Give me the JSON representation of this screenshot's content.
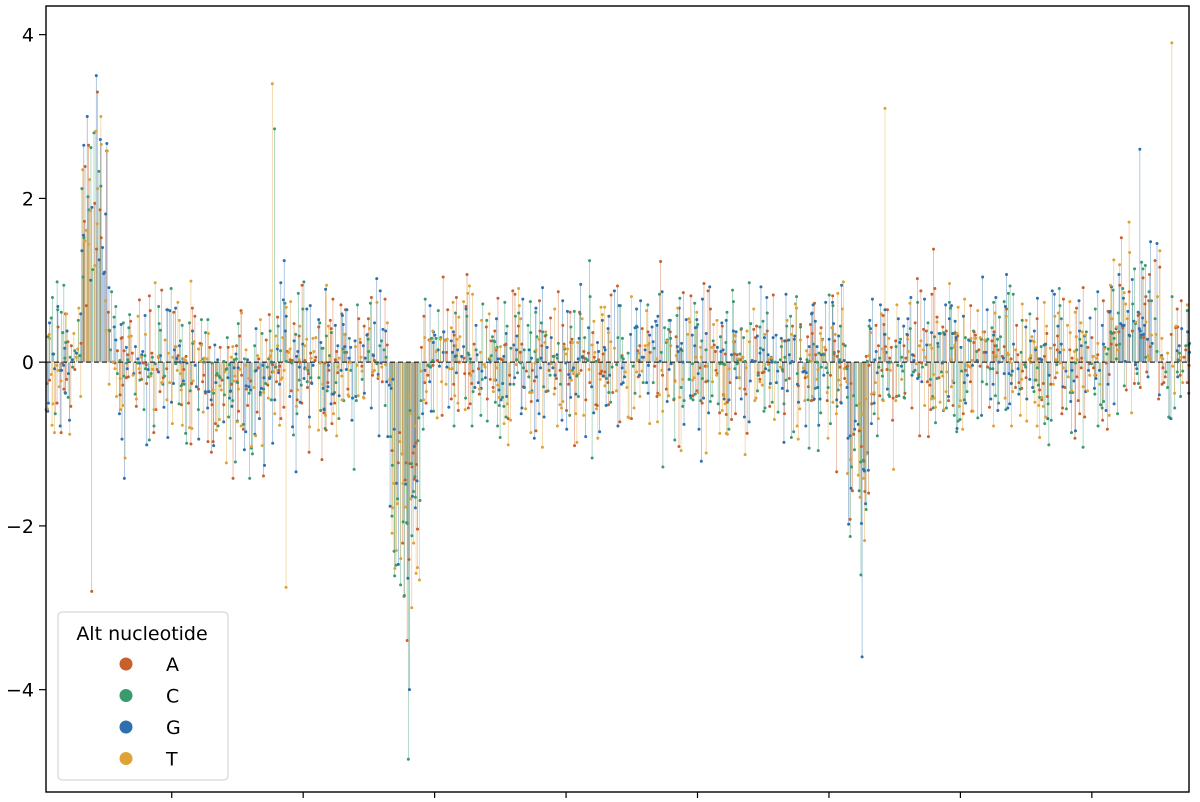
{
  "chart_data": {
    "type": "scatter",
    "style": "lollipop",
    "title": "",
    "xlabel": "",
    "ylabel": "",
    "xlim": [
      0,
      1000
    ],
    "ylim": [
      -5.25,
      4.35
    ],
    "xticks": [
      110,
      225,
      340,
      455,
      570,
      685,
      800,
      915
    ],
    "yticks": [
      -4,
      -2,
      0,
      2,
      4
    ],
    "ytick_labels": [
      "−4",
      "−2",
      "0",
      "2",
      "4"
    ],
    "baseline": 0,
    "legend": {
      "title": "Alt nucleotide",
      "position": "lower-left",
      "entries": [
        "A",
        "C",
        "G",
        "T"
      ]
    },
    "series": [
      {
        "name": "A",
        "color": "#c8602e",
        "values": []
      },
      {
        "name": "C",
        "color": "#3a9a6e",
        "values": []
      },
      {
        "name": "G",
        "color": "#2e6fae",
        "values": []
      },
      {
        "name": "T",
        "color": "#dfa237",
        "values": []
      }
    ],
    "peaks": [
      {
        "series": "G",
        "x": 44,
        "y": 3.5
      },
      {
        "series": "A",
        "x": 45,
        "y": 3.3
      },
      {
        "series": "C",
        "x": 42,
        "y": 2.8
      },
      {
        "series": "T",
        "x": 48,
        "y": 3.0
      },
      {
        "series": "C",
        "x": 200,
        "y": 2.85
      },
      {
        "series": "T",
        "x": 198,
        "y": 3.4
      },
      {
        "series": "G",
        "x": 318,
        "y": -4.0
      },
      {
        "series": "C",
        "x": 317,
        "y": -4.85
      },
      {
        "series": "A",
        "x": 316,
        "y": -3.4
      },
      {
        "series": "T",
        "x": 320,
        "y": -3.0
      },
      {
        "series": "G",
        "x": 714,
        "y": -3.6
      },
      {
        "series": "C",
        "x": 713,
        "y": -2.6
      },
      {
        "series": "T",
        "x": 734,
        "y": 3.1
      },
      {
        "series": "G",
        "x": 957,
        "y": 2.6
      },
      {
        "series": "T",
        "x": 985,
        "y": 3.9
      },
      {
        "series": "A",
        "x": 40,
        "y": -2.8
      },
      {
        "series": "T",
        "x": 210,
        "y": -2.75
      }
    ]
  }
}
